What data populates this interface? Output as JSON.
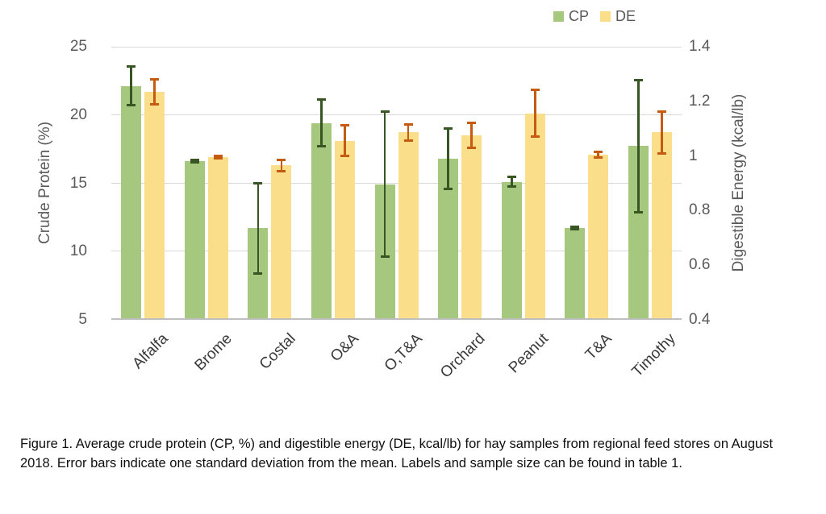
{
  "legend": {
    "items": [
      {
        "label": "CP",
        "color": "#A5C87E"
      },
      {
        "label": "DE",
        "color": "#FBDE8A"
      }
    ]
  },
  "left_axis": {
    "title": "Crude Protein (%)",
    "ticks": [
      "25",
      "20",
      "15",
      "10",
      "5"
    ],
    "min": 5,
    "max": 25
  },
  "right_axis": {
    "title": "Digestible Energy (kcal/lb)",
    "ticks": [
      "1.4",
      "1.2",
      "1",
      "0.8",
      "0.6",
      "0.4"
    ],
    "min": 0.4,
    "max": 1.4
  },
  "caption": "Figure 1. Average crude protein (CP, %) and digestible energy (DE, kcal/lb) for hay samples from regional feed stores on August 2018. Error bars indicate one standard deviation from the mean. Labels and sample size can be found in table 1.",
  "chart_data": {
    "type": "bar",
    "title": "",
    "categories": [
      "Alfalfa",
      "Brome",
      "Costal",
      "O&A",
      "O,T&A",
      "Orchard",
      "Peanut",
      "T&A",
      "Timothy"
    ],
    "series": [
      {
        "name": "CP",
        "axis": "left",
        "unit": "%",
        "color": "#A5C87E",
        "error_color": "#375623",
        "values": [
          22.0,
          16.5,
          11.6,
          19.3,
          14.8,
          16.7,
          15.0,
          11.6,
          17.6
        ],
        "stdev": [
          1.5,
          0.1,
          3.4,
          1.8,
          5.4,
          2.3,
          0.45,
          0.12,
          4.9
        ]
      },
      {
        "name": "DE",
        "axis": "right",
        "unit": "kcal/lb",
        "color": "#FBDE8A",
        "error_color": "#C55A11",
        "values": [
          1.23,
          0.99,
          0.96,
          1.05,
          1.08,
          1.07,
          1.15,
          1.0,
          1.08
        ],
        "stdev": [
          0.05,
          0.01,
          0.025,
          0.06,
          0.035,
          0.05,
          0.09,
          0.015,
          0.08
        ]
      }
    ],
    "left_ylim": [
      5,
      25
    ],
    "right_ylim": [
      0.4,
      1.4
    ],
    "grid": true,
    "error_bars": "one standard deviation",
    "legend_position": "top-right"
  }
}
